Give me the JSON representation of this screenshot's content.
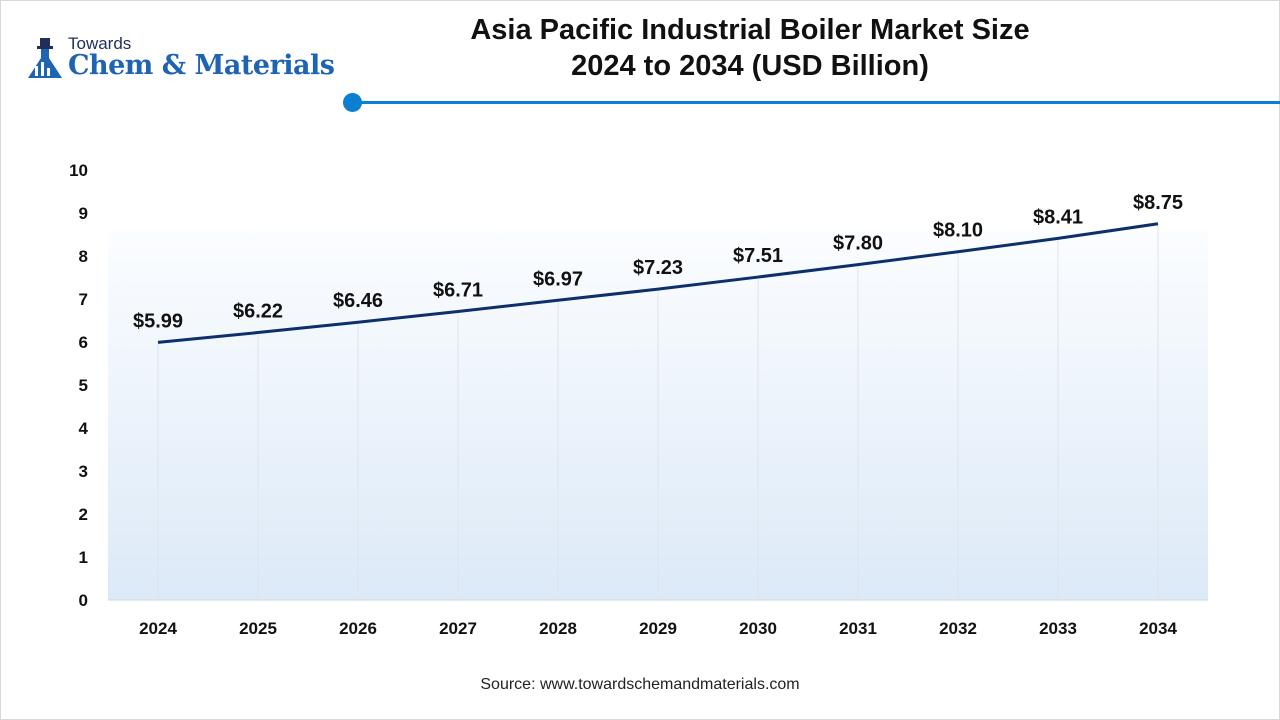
{
  "brand": {
    "top": "Towards",
    "main": "Chem & Materials",
    "icon": "flask-icon",
    "colors": {
      "primary": "#1f63b3",
      "dark": "#1f2f5a"
    }
  },
  "title_line1": "Asia Pacific Industrial Boiler Market Size",
  "title_line2": "2024 to 2034 (USD Billion)",
  "source": "Source: www.towardschemandmaterials.com",
  "colors": {
    "line": "#0d2f6b",
    "accent": "#0d7fd3",
    "area_top": "#fbfdff",
    "area_bottom": "#dce9f7"
  },
  "chart_data": {
    "type": "line",
    "x": [
      "2024",
      "2025",
      "2026",
      "2027",
      "2028",
      "2029",
      "2030",
      "2031",
      "2032",
      "2033",
      "2034"
    ],
    "series": [
      {
        "values": [
          5.99,
          6.22,
          6.46,
          6.71,
          6.97,
          7.23,
          7.51,
          7.8,
          8.1,
          8.41,
          8.75
        ]
      }
    ],
    "data_labels": [
      "$5.99",
      "$6.22",
      "$6.46",
      "$6.71",
      "$6.97",
      "$7.23",
      "$7.51",
      "$7.80",
      "$8.10",
      "$8.41",
      "$8.75"
    ],
    "y_ticks": [
      "0",
      "1",
      "2",
      "3",
      "4",
      "5",
      "6",
      "7",
      "8",
      "9",
      "10"
    ],
    "ylim": [
      0,
      10
    ],
    "grid": "vertical",
    "legend": "none"
  }
}
